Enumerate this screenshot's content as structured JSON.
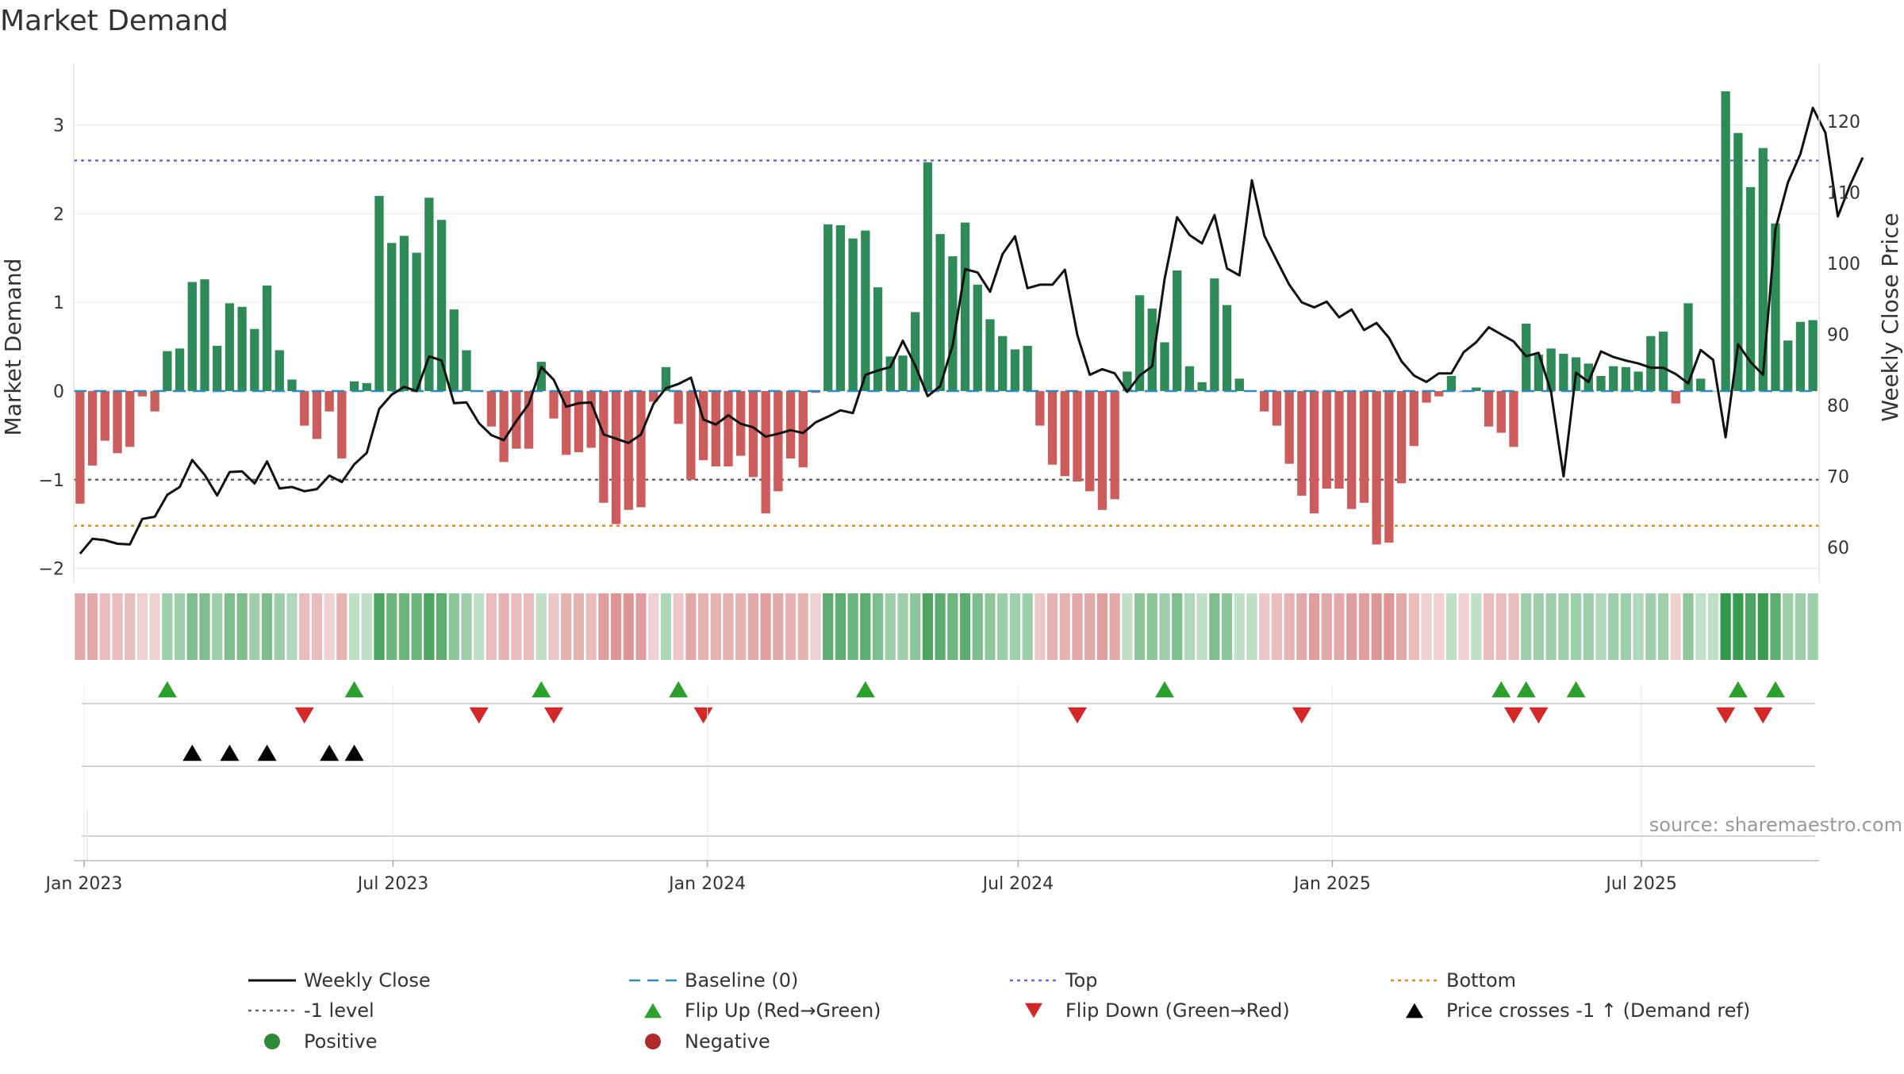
{
  "chart_data": {
    "type": "bar",
    "title": "Market Demand",
    "ylabel": "Market Demand",
    "y2label": "Weekly Close Price",
    "ylim": [
      -2.2,
      3.6
    ],
    "y2lim": [
      55.5,
      127.5
    ],
    "yticks": [
      -2,
      -1,
      0,
      1,
      2,
      3
    ],
    "y2ticks": [
      60,
      70,
      80,
      90,
      100,
      110,
      120
    ],
    "date_range": [
      "2022-12-26",
      "2025-10-13"
    ],
    "x_ticks": [
      {
        "label": "Jan 2023",
        "date": "2023-01-01"
      },
      {
        "label": "Jul 2023",
        "date": "2023-07-01"
      },
      {
        "label": "Jan 2024",
        "date": "2024-01-01"
      },
      {
        "label": "Jul 2024",
        "date": "2024-07-01"
      },
      {
        "label": "Jan 2025",
        "date": "2025-01-01"
      },
      {
        "label": "Jul 2025",
        "date": "2025-07-01"
      }
    ],
    "reference_lines": {
      "baseline": 0,
      "top": 2.6,
      "minus_one_level": -1,
      "bottom": -1.52
    },
    "demand": [
      -1.27,
      -0.84,
      -0.56,
      -0.7,
      -0.63,
      -0.06,
      -0.23,
      0.45,
      0.48,
      1.23,
      1.26,
      0.51,
      0.99,
      0.95,
      0.7,
      1.19,
      0.46,
      0.13,
      -0.39,
      -0.54,
      -0.23,
      -0.76,
      0.11,
      0.09,
      2.2,
      1.67,
      1.75,
      1.56,
      2.18,
      1.93,
      0.92,
      0.46,
      0,
      -0.4,
      -0.8,
      -0.65,
      -0.65,
      0.33,
      -0.31,
      -0.72,
      -0.69,
      -0.64,
      -1.26,
      -1.5,
      -1.34,
      -1.31,
      -0.12,
      0.27,
      -0.37,
      -1.0,
      -0.78,
      -0.85,
      -0.85,
      -0.73,
      -0.97,
      -1.38,
      -1.13,
      -0.76,
      -0.86,
      -0.02,
      1.88,
      1.87,
      1.72,
      1.81,
      1.17,
      0.39,
      0.4,
      0.89,
      2.58,
      1.77,
      1.52,
      1.9,
      1.2,
      0.81,
      0.62,
      0.47,
      0.51,
      -0.39,
      -0.83,
      -0.96,
      -1.02,
      -1.13,
      -1.34,
      -1.22,
      0.22,
      1.08,
      0.93,
      0.55,
      1.36,
      0.28,
      0.1,
      1.27,
      0.97,
      0.14,
      0,
      -0.23,
      -0.39,
      -0.82,
      -1.18,
      -1.38,
      -1.1,
      -1.1,
      -1.33,
      -1.26,
      -1.73,
      -1.71,
      -1.04,
      -0.62,
      -0.13,
      -0.06,
      0.17,
      -0.01,
      0.04,
      -0.4,
      -0.47,
      -0.63,
      0.76,
      0.41,
      0.48,
      0.42,
      0.38,
      0.31,
      0.17,
      0.28,
      0.27,
      0.22,
      0.62,
      0.67,
      -0.14,
      0.99,
      0.14,
      0,
      3.38,
      2.91,
      2.3,
      2.74,
      1.89,
      0.57,
      0.78,
      0.8
    ],
    "weekly_close": [
      59.1,
      61.2,
      61.0,
      60.5,
      60.4,
      64.0,
      64.3,
      67.4,
      68.5,
      72.3,
      70.2,
      67.3,
      70.6,
      70.7,
      69.0,
      72.1,
      68.3,
      68.5,
      67.9,
      68.2,
      70.1,
      69.2,
      71.7,
      73.3,
      79.5,
      81.5,
      82.6,
      82.0,
      86.9,
      86.3,
      80.3,
      80.4,
      77.5,
      75.8,
      75.1,
      77.8,
      80.2,
      85.4,
      83.6,
      79.8,
      80.3,
      80.4,
      75.9,
      75.3,
      74.7,
      75.9,
      80.2,
      82.4,
      83.0,
      83.9,
      78.0,
      77.3,
      78.6,
      77.4,
      76.9,
      75.6,
      76.0,
      76.5,
      76.1,
      77.6,
      78.4,
      79.3,
      78.9,
      84.3,
      84.9,
      85.4,
      89.1,
      85.6,
      81.3,
      82.7,
      88.5,
      99.2,
      98.7,
      96.0,
      101.3,
      103.8,
      96.5,
      97.0,
      97.0,
      99.1,
      89.9,
      84.3,
      85.1,
      84.5,
      81.9,
      84.2,
      85.5,
      97.8,
      106.5,
      104.0,
      102.8,
      106.8,
      99.3,
      98.3,
      111.7,
      103.9,
      100.4,
      97.0,
      94.5,
      93.8,
      94.6,
      92.4,
      93.5,
      90.6,
      91.6,
      89.5,
      86.2,
      84.2,
      83.3,
      84.5,
      84.5,
      87.5,
      88.9,
      91.0,
      90.0,
      89.0,
      86.9,
      87.4,
      81.9,
      70.0,
      84.6,
      83.3,
      87.6,
      86.8,
      86.3,
      85.9,
      85.3,
      85.3,
      84.4,
      83.1,
      87.8,
      86.4,
      75.5,
      88.6,
      86.1,
      84.3,
      104.8,
      111.4,
      115.4,
      121.9,
      118.4,
      106.6,
      111.1,
      114.9
    ],
    "cells": [
      0.5,
      0.5,
      0.3,
      0.3,
      0.3,
      0.1,
      0.1,
      0.3,
      0.3,
      0.5,
      0.5,
      0.3,
      0.5,
      0.5,
      0.3,
      0.5,
      0.3,
      0.2,
      0.3,
      0.3,
      0.1,
      0.4,
      0.1,
      0.1,
      0.8,
      0.6,
      0.6,
      0.6,
      0.8,
      0.7,
      0.4,
      0.3,
      0.1,
      0.3,
      0.4,
      0.3,
      0.3,
      0.1,
      0.2,
      0.4,
      0.4,
      0.3,
      0.6,
      0.7,
      0.7,
      0.6,
      0.1,
      0.2,
      0.2,
      0.5,
      0.4,
      0.4,
      0.4,
      0.4,
      0.5,
      0.6,
      0.5,
      0.4,
      0.4,
      0.1,
      0.7,
      0.7,
      0.6,
      0.7,
      0.5,
      0.3,
      0.3,
      0.4,
      0.8,
      0.7,
      0.6,
      0.7,
      0.5,
      0.4,
      0.3,
      0.3,
      0.3,
      0.2,
      0.4,
      0.4,
      0.5,
      0.5,
      0.6,
      0.5,
      0.1,
      0.4,
      0.4,
      0.3,
      0.5,
      0.2,
      0.1,
      0.5,
      0.4,
      0.1,
      0.1,
      0.2,
      0.3,
      0.4,
      0.5,
      0.6,
      0.5,
      0.5,
      0.6,
      0.6,
      0.7,
      0.7,
      0.5,
      0.3,
      0.1,
      0.1,
      0.1,
      0.1,
      0.1,
      0.3,
      0.3,
      0.3,
      0.3,
      0.3,
      0.3,
      0.3,
      0.3,
      0.3,
      0.2,
      0.3,
      0.3,
      0.2,
      0.3,
      0.3,
      0.1,
      0.4,
      0.1,
      0.1,
      0.95,
      0.9,
      0.8,
      0.9,
      0.7,
      0.3,
      0.3,
      0.3
    ],
    "flip_up_indices": [
      7,
      22,
      37,
      48,
      63,
      87,
      114,
      116,
      120,
      133,
      136
    ],
    "flip_down_indices": [
      18,
      32,
      38,
      50,
      80,
      98,
      115,
      117,
      132,
      135
    ],
    "price_cross_indices": [
      9,
      12,
      15,
      20,
      22
    ],
    "legend": [
      {
        "label": "Weekly Close",
        "symbol": "solid-line",
        "color": "#111111"
      },
      {
        "label": "Baseline (0)",
        "symbol": "dash-line",
        "color": "#2b8cbe"
      },
      {
        "label": "Top",
        "symbol": "dot-line",
        "color": "#6a6ade"
      },
      {
        "label": "Bottom",
        "symbol": "dot-line",
        "color": "#e08a1e"
      },
      {
        "label": "-1 level",
        "symbol": "dot-line",
        "color": "#666666"
      },
      {
        "label": "Flip Up (Red→Green)",
        "symbol": "triangle-up",
        "color": "#2ca02c"
      },
      {
        "label": "Flip Down (Green→Red)",
        "symbol": "triangle-down",
        "color": "#d62728"
      },
      {
        "label": "Price crosses -1 ↑ (Demand ref)",
        "symbol": "triangle-up",
        "color": "#000000"
      },
      {
        "label": "Positive",
        "symbol": "circle",
        "color": "#2e8b35"
      },
      {
        "label": "Negative",
        "symbol": "circle",
        "color": "#b02a2a"
      }
    ],
    "source": "source: sharemaestro.com"
  },
  "colors": {
    "positive_bar": "#2e8b57",
    "negative_bar": "#cd5c5c",
    "price_line": "#111111",
    "baseline": "#2b8cbe",
    "top": "#6a6ade",
    "bottom": "#e08a1e",
    "minus_one": "#666666",
    "flip_up": "#2ca02c",
    "flip_down": "#d62728",
    "cross": "#000000",
    "grid": "#ececec"
  }
}
